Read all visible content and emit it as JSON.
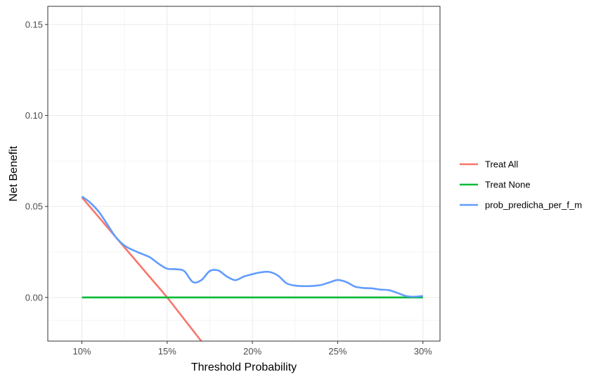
{
  "chart_data": {
    "type": "line",
    "title": "",
    "xlabel": "Threshold Probability",
    "ylabel": "Net Benefit",
    "xlim": [
      0.08,
      0.31
    ],
    "ylim": [
      -0.024,
      0.16
    ],
    "x_ticks": [
      {
        "value": 0.1,
        "label": "10%"
      },
      {
        "value": 0.15,
        "label": "15%"
      },
      {
        "value": 0.2,
        "label": "20%"
      },
      {
        "value": 0.25,
        "label": "25%"
      },
      {
        "value": 0.3,
        "label": "30%"
      }
    ],
    "y_ticks": [
      {
        "value": 0.0,
        "label": "0.00"
      },
      {
        "value": 0.05,
        "label": "0.05"
      },
      {
        "value": 0.1,
        "label": "0.10"
      },
      {
        "value": 0.15,
        "label": "0.15"
      }
    ],
    "grid": true,
    "legend_position": "right",
    "series": [
      {
        "name": "Treat All",
        "color": "#F8766D",
        "x": [
          0.1,
          0.11,
          0.12,
          0.13,
          0.14,
          0.15,
          0.16,
          0.17,
          0.175
        ],
        "y": [
          0.055,
          0.044,
          0.033,
          0.022,
          0.011,
          0.0,
          -0.012,
          -0.024,
          -0.03
        ]
      },
      {
        "name": "Treat None",
        "color": "#00BA38",
        "x": [
          0.1,
          0.3
        ],
        "y": [
          0.0,
          0.0
        ]
      },
      {
        "name": "prob_predicha_per_f_m",
        "color": "#619CFF",
        "x": [
          0.1,
          0.105,
          0.11,
          0.115,
          0.12,
          0.125,
          0.13,
          0.135,
          0.14,
          0.145,
          0.15,
          0.155,
          0.16,
          0.165,
          0.17,
          0.175,
          0.18,
          0.185,
          0.19,
          0.195,
          0.2,
          0.205,
          0.21,
          0.215,
          0.22,
          0.225,
          0.23,
          0.235,
          0.24,
          0.245,
          0.25,
          0.255,
          0.26,
          0.265,
          0.27,
          0.275,
          0.28,
          0.285,
          0.29,
          0.295,
          0.3
        ],
        "y": [
          0.0555,
          0.052,
          0.047,
          0.04,
          0.033,
          0.0285,
          0.026,
          0.024,
          0.022,
          0.0185,
          0.0158,
          0.0155,
          0.0145,
          0.0085,
          0.0095,
          0.0145,
          0.0148,
          0.0115,
          0.0095,
          0.0115,
          0.0128,
          0.0138,
          0.014,
          0.012,
          0.0078,
          0.0065,
          0.0062,
          0.0063,
          0.0068,
          0.0082,
          0.0096,
          0.0085,
          0.006,
          0.0052,
          0.005,
          0.0043,
          0.004,
          0.0025,
          0.0008,
          0.0004,
          0.0008
        ]
      }
    ]
  }
}
